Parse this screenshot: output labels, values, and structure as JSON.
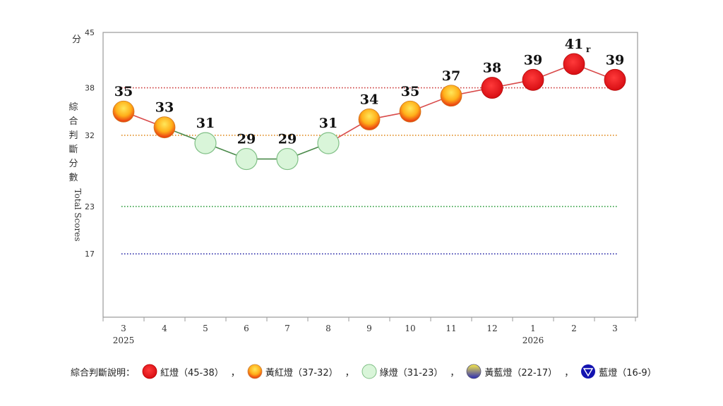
{
  "chart_data": {
    "type": "line",
    "ylabel_cn": "綜合判斷分數",
    "ylabel_en": "Total Scores",
    "y_unit": "分",
    "ylim": [
      9,
      45
    ],
    "yticks": [
      17,
      23,
      32,
      38,
      45
    ],
    "x": [
      "3",
      "4",
      "5",
      "6",
      "7",
      "8",
      "9",
      "10",
      "11",
      "12",
      "1",
      "2",
      "3"
    ],
    "year_labels": [
      {
        "index": 0,
        "text": "2025"
      },
      {
        "index": 10,
        "text": "2026"
      }
    ],
    "series": [
      {
        "values": [
          35,
          33,
          31,
          29,
          29,
          31,
          34,
          35,
          37,
          38,
          39,
          41,
          39
        ],
        "signals": [
          "yr",
          "yr",
          "green",
          "green",
          "green",
          "green",
          "yr",
          "yr",
          "yr",
          "red",
          "red",
          "red",
          "red"
        ],
        "labels": [
          "35",
          "33",
          "31",
          "29",
          "29",
          "31",
          "34",
          "35",
          "37",
          "38",
          "39",
          "41",
          "39"
        ]
      }
    ],
    "revised_mark": {
      "index": 11,
      "text": "r"
    },
    "threshold_lines": [
      {
        "value": 38,
        "color": "#cc3333"
      },
      {
        "value": 32,
        "color": "#e08a1e"
      },
      {
        "value": 23,
        "color": "#2e9e3e"
      },
      {
        "value": 17,
        "color": "#2a2aa8"
      }
    ]
  },
  "legend": {
    "title": "綜合判斷說明：",
    "separator": "，",
    "items": [
      {
        "key": "red",
        "label": "紅燈（45-38）"
      },
      {
        "key": "yr",
        "label": "黃紅燈（37-32）"
      },
      {
        "key": "green",
        "label": "綠燈（31-23）"
      },
      {
        "key": "yb",
        "label": "黃藍燈（22-17）"
      },
      {
        "key": "blue",
        "label": "藍燈（16-9）"
      }
    ]
  },
  "colors": {
    "red": "#e8141b",
    "yr_top": "#ffd21a",
    "yr_bottom": "#f23c12",
    "green": "#d9f5d9",
    "green_stroke": "#7fbf85",
    "yb_top": "#f5e64a",
    "yb_bottom": "#3a3ac0",
    "blue": "#1212b0",
    "line_red": "#d94a4a",
    "line_green": "#4a8a4a"
  }
}
